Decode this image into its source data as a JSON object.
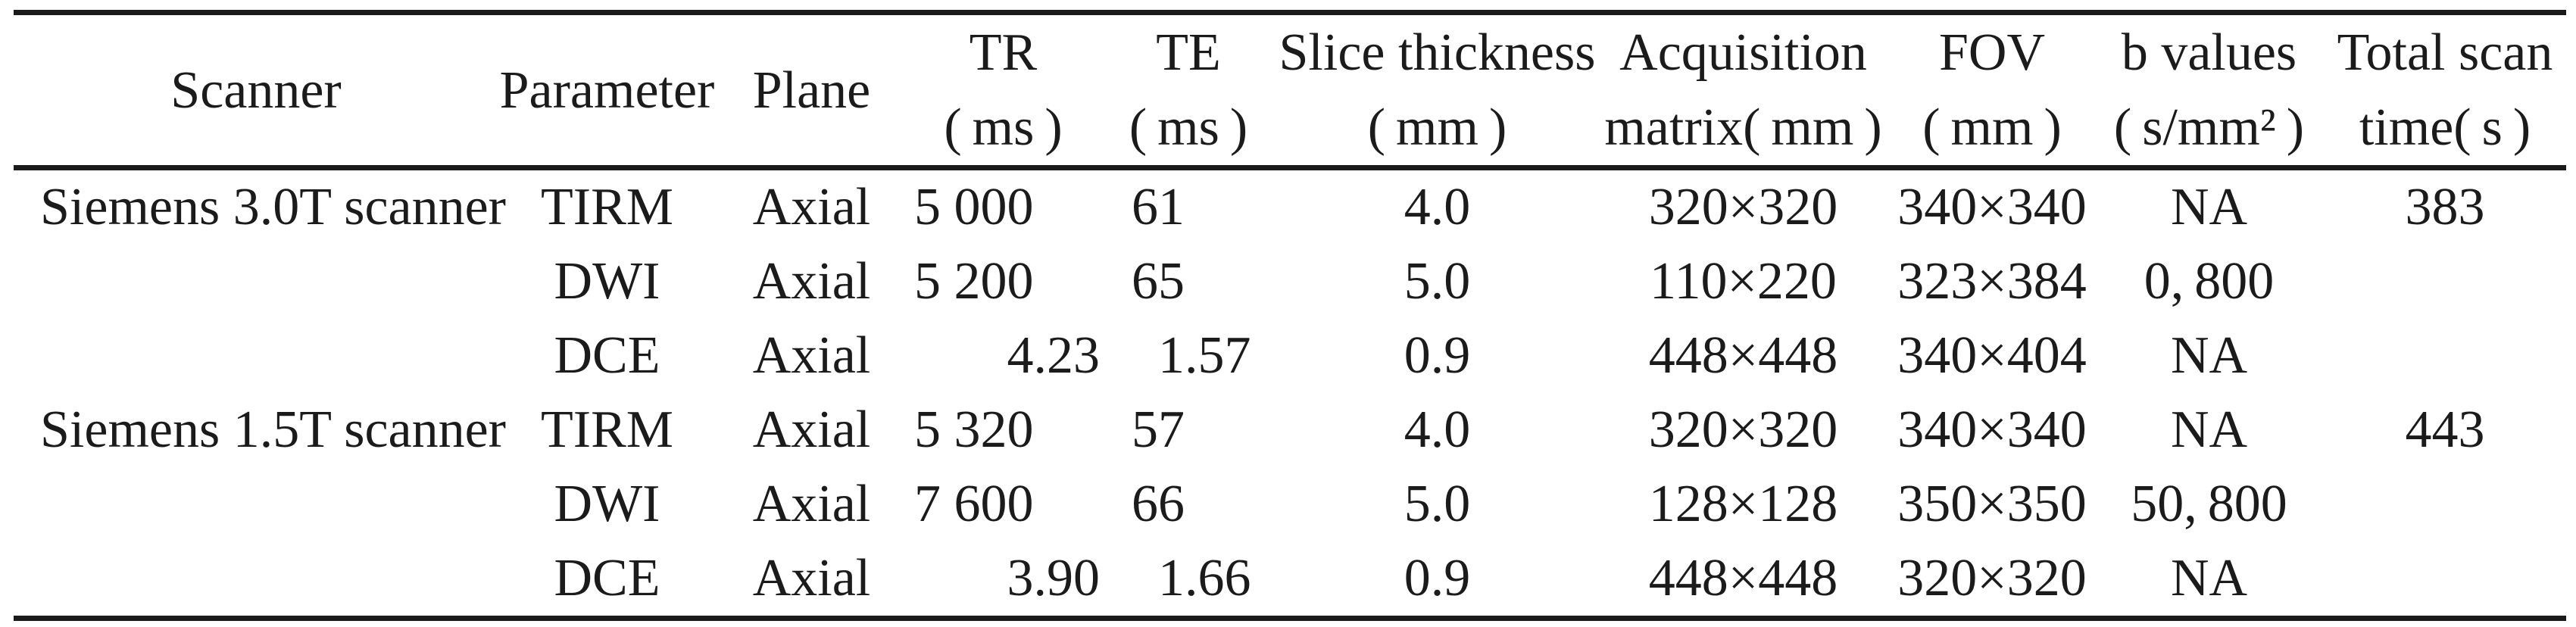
{
  "page": {
    "background": "#ffffff",
    "text_color": "#1b1b1b",
    "rule_color": "#1a1a1a"
  },
  "table": {
    "headers": [
      {
        "id": "scanner",
        "line1": "Scanner",
        "line2": ""
      },
      {
        "id": "parameter",
        "line1": "Parameter",
        "line2": ""
      },
      {
        "id": "plane",
        "line1": "Plane",
        "line2": ""
      },
      {
        "id": "tr",
        "line1": "TR",
        "line2": "( ms )"
      },
      {
        "id": "te",
        "line1": "TE",
        "line2": "( ms )"
      },
      {
        "id": "slice",
        "line1": "Slice thickness",
        "line2": "( mm )"
      },
      {
        "id": "matrix",
        "line1": "Acquisition",
        "line2": "matrix( mm )"
      },
      {
        "id": "fov",
        "line1": "FOV",
        "line2": "( mm )"
      },
      {
        "id": "b_values",
        "line1": "b values",
        "line2": "( s/mm² )"
      },
      {
        "id": "total",
        "line1": "Total scan",
        "line2": "time( s )"
      }
    ],
    "rows": [
      {
        "scanner": "Siemens 3.0T scanner",
        "parameter": "TIRM",
        "plane": "Axial",
        "tr": {
          "i": "5 000",
          "f": ""
        },
        "te": {
          "i": "61",
          "f": ""
        },
        "slice": "4.0",
        "matrix": "320×320",
        "fov": "340×340",
        "b": "NA",
        "total": "383"
      },
      {
        "scanner": "",
        "parameter": "DWI",
        "plane": "Axial",
        "tr": {
          "i": "5 200",
          "f": ""
        },
        "te": {
          "i": "65",
          "f": ""
        },
        "slice": "5.0",
        "matrix": "110×220",
        "fov": "323×384",
        "b": "0, 800",
        "total": ""
      },
      {
        "scanner": "",
        "parameter": "DCE",
        "plane": "Axial",
        "tr": {
          "i": "4",
          "f": ".23"
        },
        "te": {
          "i": "1",
          "f": ".57"
        },
        "slice": "0.9",
        "matrix": "448×448",
        "fov": "340×404",
        "b": "NA",
        "total": ""
      },
      {
        "scanner": "Siemens 1.5T scanner",
        "parameter": "TIRM",
        "plane": "Axial",
        "tr": {
          "i": "5 320",
          "f": ""
        },
        "te": {
          "i": "57",
          "f": ""
        },
        "slice": "4.0",
        "matrix": "320×320",
        "fov": "340×340",
        "b": "NA",
        "total": "443"
      },
      {
        "scanner": "",
        "parameter": "DWI",
        "plane": "Axial",
        "tr": {
          "i": "7 600",
          "f": ""
        },
        "te": {
          "i": "66",
          "f": ""
        },
        "slice": "5.0",
        "matrix": "128×128",
        "fov": "350×350",
        "b": "50, 800",
        "total": ""
      },
      {
        "scanner": "",
        "parameter": "DCE",
        "plane": "Axial",
        "tr": {
          "i": "3",
          "f": ".90"
        },
        "te": {
          "i": "1",
          "f": ".66"
        },
        "slice": "0.9",
        "matrix": "448×448",
        "fov": "320×320",
        "b": "NA",
        "total": ""
      }
    ]
  }
}
